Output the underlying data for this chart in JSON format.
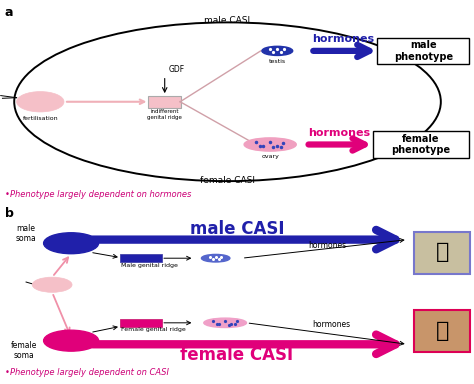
{
  "bg_color": "#ffffff",
  "male_casi_color": "#2020aa",
  "female_casi_color": "#e0007a",
  "pink_light": "#f5c0c8",
  "pink_medium": "#f090a8",
  "sperm_color": "#f0b0b8",
  "label_a": "a",
  "label_b": "b",
  "male_casi_label": "male CASI",
  "female_casi_label": "female CASI",
  "hormones_label": "hormones",
  "male_phenotype": "male\nphenotype",
  "female_phenotype": "female\nphenotype",
  "fertilisation": "fertilisation",
  "indiff_ridge": "indifferent\ngenital ridge",
  "gdf": "GDF",
  "testis": "testis",
  "ovary": "ovary",
  "male_soma": "male\nsoma",
  "female_soma": "female\nsoma",
  "male_genital_ridge": "Male genital ridge",
  "female_genital_ridge": "Female genital ridge",
  "note_a": "•Phenotype largely dependent on hormones",
  "note_b": "•Phenotype largely dependent on CASI",
  "note_color": "#cc0077",
  "chicken_male_border": "#7777cc",
  "chicken_female_border": "#dd0055"
}
